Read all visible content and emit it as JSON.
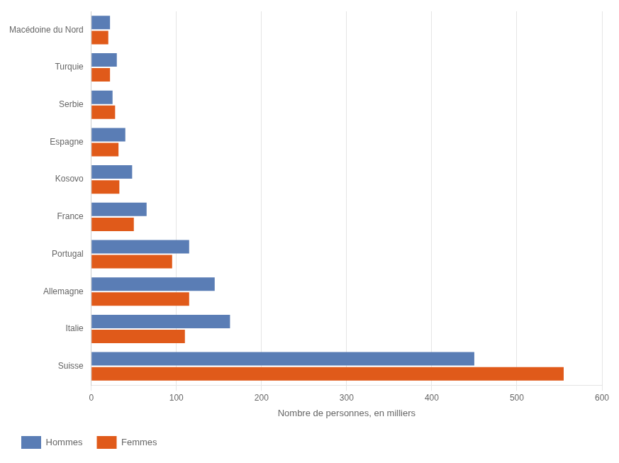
{
  "chart_data": {
    "type": "bar",
    "orientation": "horizontal",
    "categories": [
      "Suisse",
      "Italie",
      "Allemagne",
      "Portugal",
      "France",
      "Kosovo",
      "Espagne",
      "Serbie",
      "Turquie",
      "Macédoine du Nord"
    ],
    "series": [
      {
        "name": "Hommes",
        "color": "#5a7db5",
        "values": [
          450,
          163,
          145,
          115,
          65,
          48,
          40,
          25,
          30,
          22
        ]
      },
      {
        "name": "Femmes",
        "color": "#e05a1a",
        "values": [
          555,
          110,
          115,
          95,
          50,
          33,
          32,
          28,
          22,
          20
        ]
      }
    ],
    "xlabel": "Nombre de personnes, en milliers",
    "xlim": [
      0,
      600
    ],
    "xticks": [
      0,
      100,
      200,
      300,
      400,
      500,
      600
    ],
    "grid": true,
    "legend": "bottom"
  }
}
